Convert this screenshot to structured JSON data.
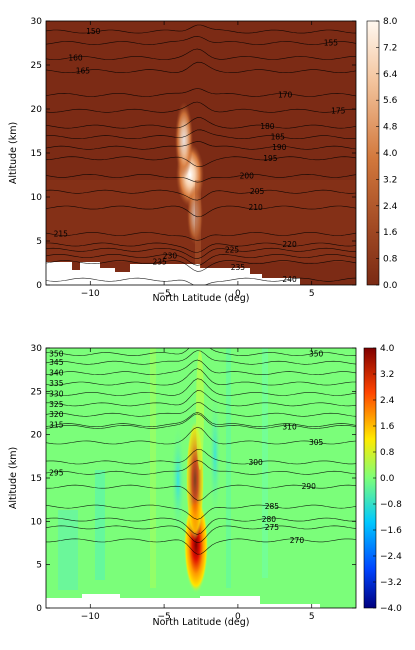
{
  "chart_data": [
    {
      "type": "heatmap",
      "title": "",
      "xlabel": "North Latitude (deg)",
      "ylabel": "Altitude (km)",
      "xlim": [
        -13,
        8
      ],
      "ylim": [
        0,
        30
      ],
      "xticks": [
        -10,
        -5,
        0,
        5
      ],
      "xtick_labels": [
        "−10",
        "−5",
        "0",
        "5"
      ],
      "yticks": [
        0,
        5,
        10,
        15,
        20,
        25,
        30
      ],
      "colorbar": {
        "min": 0.0,
        "max": 8.0,
        "ticks": [
          "0.0",
          "0.8",
          "1.6",
          "2.4",
          "3.2",
          "4.0",
          "4.8",
          "5.6",
          "6.4",
          "7.2",
          "8.0"
        ],
        "colors": [
          "#7a2a14",
          "#a24a24",
          "#d2783c",
          "#f4c6a0",
          "#fff8f0"
        ]
      },
      "contours": [
        {
          "label": "150",
          "alt": 28.8,
          "lat": -9.8
        },
        {
          "label": "155",
          "alt": 27.5,
          "lat": 6.3
        },
        {
          "label": "160",
          "alt": 25.8,
          "lat": -11.0
        },
        {
          "label": "165",
          "alt": 24.3,
          "lat": -10.5
        },
        {
          "label": "170",
          "alt": 21.6,
          "lat": 3.2
        },
        {
          "label": "175",
          "alt": 19.8,
          "lat": 6.8
        },
        {
          "label": "180",
          "alt": 18.0,
          "lat": 2.0
        },
        {
          "label": "185",
          "alt": 16.8,
          "lat": 2.7
        },
        {
          "label": "190",
          "alt": 15.6,
          "lat": 2.8
        },
        {
          "label": "195",
          "alt": 14.4,
          "lat": 2.2
        },
        {
          "label": "200",
          "alt": 12.4,
          "lat": 0.6
        },
        {
          "label": "205",
          "alt": 10.6,
          "lat": 1.3
        },
        {
          "label": "210",
          "alt": 8.8,
          "lat": 1.2
        },
        {
          "label": "215",
          "alt": 5.8,
          "lat": -12.0
        },
        {
          "label": "220",
          "alt": 4.6,
          "lat": 3.5
        },
        {
          "label": "225",
          "alt": 4.0,
          "lat": -0.4
        },
        {
          "label": "230",
          "alt": 3.3,
          "lat": -4.6
        },
        {
          "label": "235",
          "alt": 2.6,
          "lat": -5.3
        },
        {
          "label": "235",
          "alt": 2.0,
          "lat": 0.0
        },
        {
          "label": "240",
          "alt": 0.6,
          "lat": 3.5
        }
      ]
    },
    {
      "type": "heatmap",
      "title": "",
      "xlabel": "North Latitude (deg)",
      "ylabel": "Altitude (km)",
      "xlim": [
        -13,
        8
      ],
      "ylim": [
        0,
        30
      ],
      "xticks": [
        -10,
        -5,
        0,
        5
      ],
      "xtick_labels": [
        "−10",
        "−5",
        "0",
        "5"
      ],
      "yticks": [
        0,
        5,
        10,
        15,
        20,
        25,
        30
      ],
      "colorbar": {
        "min": -4.0,
        "max": 4.0,
        "ticks": [
          "−4.0",
          "−3.2",
          "−2.4",
          "−1.6",
          "−0.8",
          "0.0",
          "0.8",
          "1.6",
          "2.4",
          "3.2",
          "4.0"
        ],
        "colors": [
          "#00007f",
          "#0044ff",
          "#00c8ff",
          "#7dff7a",
          "#ffea00",
          "#ff4400",
          "#7f0000"
        ]
      },
      "contours": [
        {
          "label": "350",
          "alt": 29.3,
          "lat": -12.3
        },
        {
          "label": "350",
          "alt": 29.3,
          "lat": 5.3
        },
        {
          "label": "345",
          "alt": 28.3,
          "lat": -12.3
        },
        {
          "label": "340",
          "alt": 27.1,
          "lat": -12.3
        },
        {
          "label": "335",
          "alt": 25.9,
          "lat": -12.3
        },
        {
          "label": "330",
          "alt": 24.7,
          "lat": -12.3
        },
        {
          "label": "325",
          "alt": 23.5,
          "lat": -12.3
        },
        {
          "label": "320",
          "alt": 22.3,
          "lat": -12.3
        },
        {
          "label": "315",
          "alt": 21.1,
          "lat": -12.3
        },
        {
          "label": "310",
          "alt": 20.9,
          "lat": 3.5
        },
        {
          "label": "305",
          "alt": 19.1,
          "lat": 5.3
        },
        {
          "label": "300",
          "alt": 16.8,
          "lat": 1.2
        },
        {
          "label": "295",
          "alt": 15.6,
          "lat": -12.3
        },
        {
          "label": "290",
          "alt": 14.0,
          "lat": 4.8
        },
        {
          "label": "285",
          "alt": 11.7,
          "lat": 2.3
        },
        {
          "label": "280",
          "alt": 10.2,
          "lat": 2.1
        },
        {
          "label": "275",
          "alt": 9.3,
          "lat": 2.3
        },
        {
          "label": "270",
          "alt": 7.8,
          "lat": 4.0
        }
      ]
    }
  ]
}
